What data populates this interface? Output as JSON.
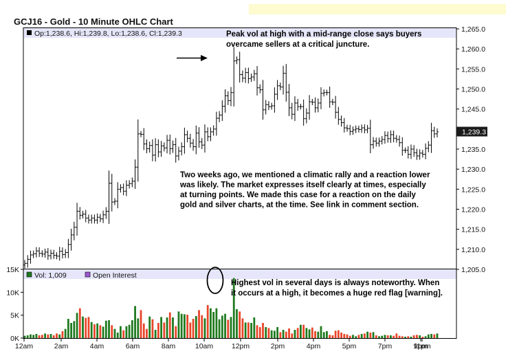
{
  "chart_data": {
    "type": "ohlc",
    "title": "GCJ16 - Gold - 10 Minute OHLC Chart",
    "last_bar_info": "Op:1,238.6, Hi:1,239.8, Lo:1,238.6, Cl:1,239.3",
    "last_price_label": "1,239.3",
    "price_axis": {
      "min": 1205,
      "max": 1265,
      "ticks": [
        "1,265.0",
        "1,260.0",
        "1,255.0",
        "1,250.0",
        "1,245.0",
        "1,240.0",
        "1,235.0",
        "1,230.0",
        "1,225.0",
        "1,220.0",
        "1,215.0",
        "1,210.0",
        "1,205.0"
      ]
    },
    "volume_axis": {
      "min": 0,
      "max": 15000,
      "ticks": [
        "15K",
        "10K",
        "5K",
        "0K"
      ]
    },
    "time_axis": [
      "12am",
      "2am",
      "4am",
      "6am",
      "8am",
      "10am",
      "12pm",
      "2pm",
      "4pm",
      "5pm",
      "7pm",
      "9pm",
      "11pm"
    ],
    "volume_legend": {
      "vol": "Vol: 1,009",
      "oi": "Open Interest"
    },
    "colors": {
      "up": "#1f7a1f",
      "down": "#e8462a",
      "bar": "#000000",
      "panel_header": "#e6e6fa",
      "note_box": "#fdfbcf"
    },
    "ohlc_closes": [
      1206.5,
      1207.5,
      1208.6,
      1208.9,
      1209.6,
      1209.0,
      1208.8,
      1209.3,
      1208.4,
      1209.0,
      1208.5,
      1208.3,
      1209.5,
      1208.7,
      1209.2,
      1211.2,
      1213.6,
      1215.5,
      1219.5,
      1218.5,
      1218.8,
      1217.8,
      1217.3,
      1217.8,
      1217.3,
      1218.0,
      1217.6,
      1218.6,
      1219.5,
      1226.5,
      1221.8,
      1222.0,
      1225.0,
      1225.4,
      1224.5,
      1226.0,
      1226.4,
      1227.0,
      1230.5,
      1238.8,
      1238.7,
      1236.3,
      1235.1,
      1235.9,
      1233.5,
      1236.1,
      1234.3,
      1235.8,
      1235.3,
      1237.2,
      1235.1,
      1236.1,
      1233.3,
      1234.5,
      1235.6,
      1238.6,
      1237.7,
      1236.5,
      1235.6,
      1239.0,
      1236.8,
      1236.0,
      1239.3,
      1238.1,
      1239.3,
      1240.0,
      1242.7,
      1243.5,
      1245.7,
      1248.3,
      1247.1,
      1249.1,
      1257.0,
      1257.3,
      1253.6,
      1252.7,
      1254.1,
      1252.6,
      1253.0,
      1253.8,
      1250.3,
      1249.8,
      1244.8,
      1246.1,
      1245.6,
      1245.8,
      1248.7,
      1250.8,
      1250.5,
      1253.9,
      1249.2,
      1245.3,
      1243.7,
      1246.5,
      1245.6,
      1245.6,
      1242.6,
      1244.0,
      1246.8,
      1246.7,
      1245.3,
      1246.5,
      1248.9,
      1249.1,
      1249.1,
      1246.8,
      1246.7,
      1244.2,
      1242.4,
      1241.6,
      1240.3,
      1240.1,
      1239.4,
      1239.8,
      1240.1,
      1239.9,
      1240.3,
      1239.8,
      1240.2,
      1236.1,
      1237.0,
      1236.5,
      1237.0,
      1237.4,
      1238.4,
      1237.6,
      1238.6,
      1237.7,
      1237.4,
      1236.6,
      1234.7,
      1234.7,
      1233.7,
      1235.0,
      1234.1,
      1233.3,
      1234.0,
      1233.7,
      1235.2,
      1236.0,
      1239.6,
      1238.8,
      1239.3
    ],
    "volume_values": [
      500,
      600,
      800,
      700,
      900,
      600,
      700,
      1000,
      800,
      900,
      600,
      1000,
      800,
      1500,
      2000,
      4200,
      3300,
      3700,
      5500,
      6500,
      4700,
      4400,
      4600,
      3500,
      3000,
      3200,
      2800,
      2500,
      3800,
      3900,
      2800,
      2000,
      1200,
      2600,
      1700,
      2600,
      2900,
      3900,
      7000,
      4300,
      6100,
      3200,
      2000,
      4700,
      4100,
      1800,
      3300,
      4600,
      3400,
      4500,
      5600,
      4500,
      2600,
      5800,
      5300,
      5200,
      5100,
      3400,
      4200,
      4800,
      6100,
      5000,
      4300,
      7200,
      6500,
      5700,
      6500,
      4100,
      4900,
      5300,
      4000,
      4600,
      13100,
      6300,
      5800,
      4300,
      3400,
      3400,
      3300,
      4500,
      2800,
      2400,
      3300,
      2400,
      2200,
      1700,
      1600,
      2400,
      1300,
      1800,
      1400,
      2100,
      1000,
      1800,
      2200,
      2900,
      2900,
      2200,
      1900,
      2300,
      1500,
      1400,
      2600,
      1300,
      1500,
      700,
      600,
      1600,
      1700,
      1200,
      900,
      800,
      500,
      700,
      400,
      700,
      900,
      1000,
      1400,
      1200,
      1300,
      600,
      400,
      500,
      700,
      600,
      600,
      500,
      1000,
      500,
      400,
      300,
      400,
      300,
      600,
      700,
      600,
      300,
      400,
      800,
      900,
      800,
      1000
    ]
  },
  "annotations": {
    "peak": [
      "Peak vol at high with a mid-range close says buyers",
      "overcame sellers at a critical juncture."
    ],
    "middle": [
      "Two weeks ago, we mentioned a climatic rally and a reaction lower",
      "was likely.  The market expresses itself clearly at times, especially",
      "at turning points.  We made this case for a reaction on the daily",
      "gold and silver charts, at the time.  See link in comment section."
    ],
    "volume": [
      "Highest vol in several days is always noteworthy.  When",
      "it occurs at a high, it becomes a huge red flag [warning]."
    ]
  }
}
